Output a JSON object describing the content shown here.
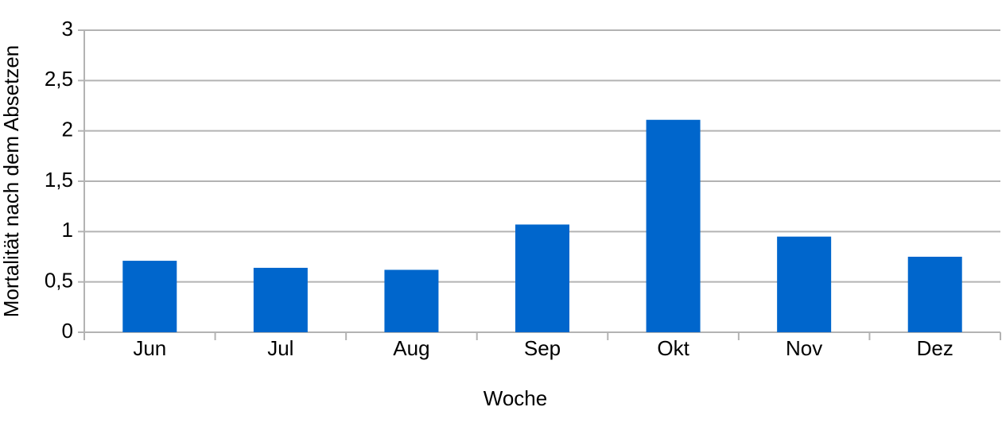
{
  "chart_data": {
    "type": "bar",
    "x_label": "Woche",
    "y_label": "Mortalität nach dem Absetzen",
    "categories": [
      "Jun",
      "Jul",
      "Aug",
      "Sep",
      "Okt",
      "Nov",
      "Dez"
    ],
    "values": [
      0.71,
      0.64,
      0.62,
      1.07,
      2.11,
      0.95,
      0.75
    ],
    "color": "#0066cc",
    "ylim": [
      0,
      3
    ],
    "yticks": [
      0,
      {
        "value": 0.5,
        "label": "0,5"
      },
      1,
      {
        "value": 1.5,
        "label": "1,5"
      },
      2,
      {
        "value": 2.5,
        "label": "2,5"
      },
      3
    ],
    "grid": true
  }
}
